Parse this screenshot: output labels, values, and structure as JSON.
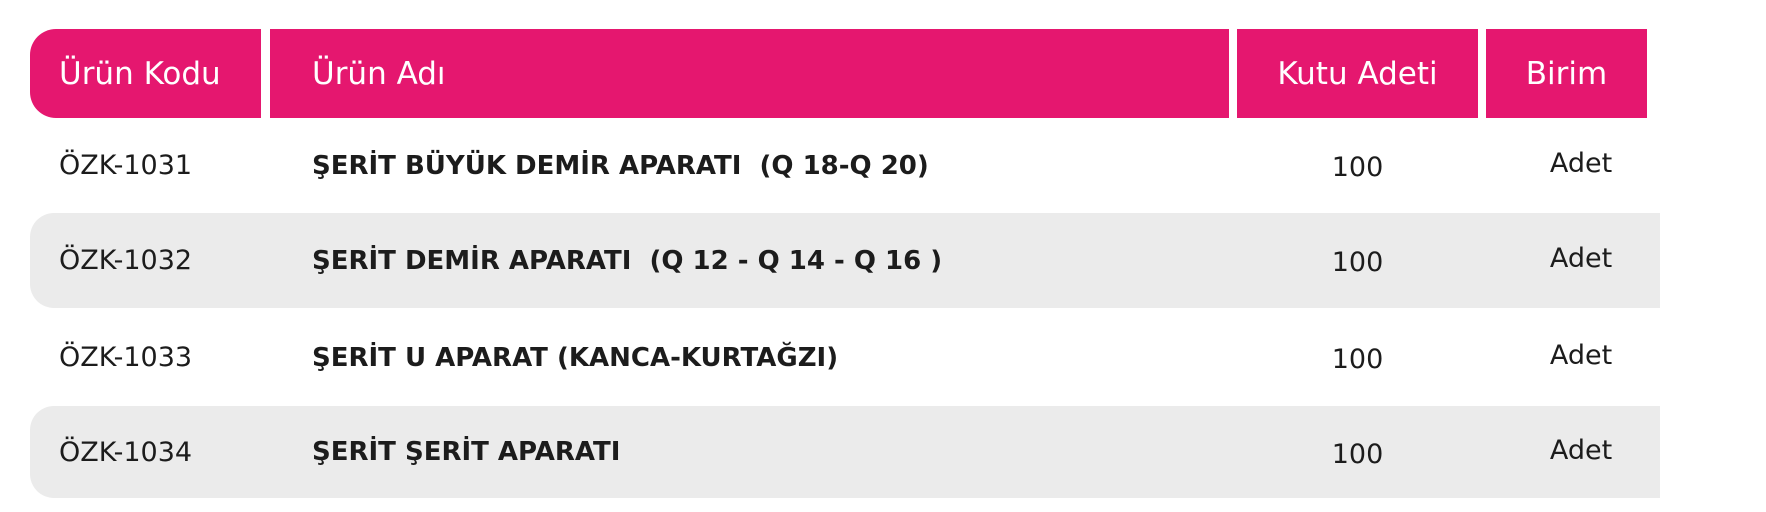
{
  "colors": {
    "header_bg": "#E5176F",
    "stripe_bg": "#EBEBEB"
  },
  "table": {
    "headers": [
      "Ürün Kodu",
      "Ürün Adı",
      "Kutu Adeti",
      "Birim"
    ],
    "rows": [
      {
        "code": "ÖZK-1031",
        "name": "ŞERİT BÜYÜK DEMİR APARATI  (Q 18-Q 20)",
        "qty": "100",
        "unit": "Adet"
      },
      {
        "code": "ÖZK-1032",
        "name": "ŞERİT DEMİR APARATI  (Q 12 - Q 14 - Q 16 )",
        "qty": "100",
        "unit": "Adet"
      },
      {
        "code": "ÖZK-1033",
        "name": "ŞERİT U APARAT (KANCA-KURTAĞZI)",
        "qty": "100",
        "unit": "Adet"
      },
      {
        "code": "ÖZK-1034",
        "name": "ŞERİT ŞERİT APARATI",
        "qty": "100",
        "unit": "Adet"
      }
    ]
  }
}
